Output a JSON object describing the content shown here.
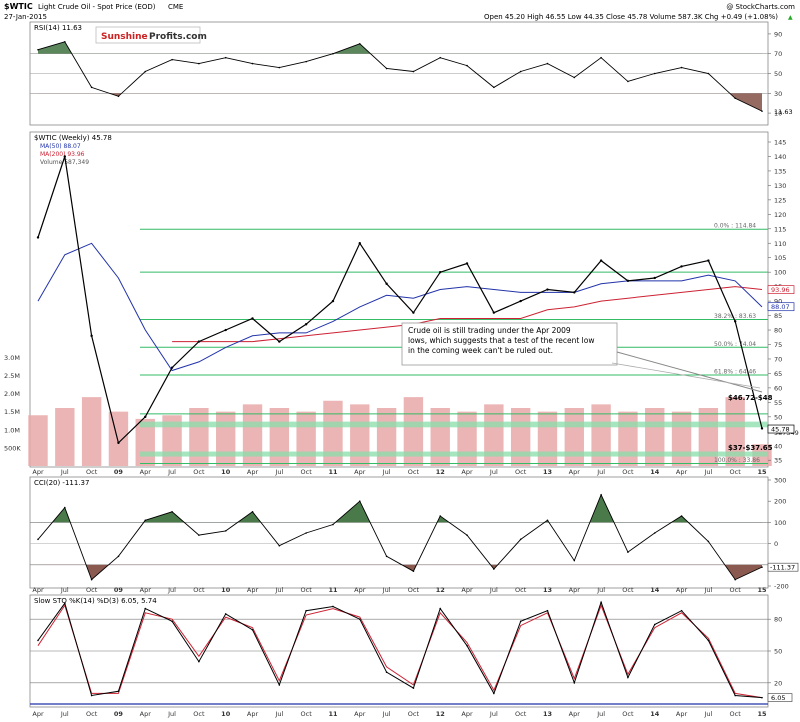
{
  "header": {
    "symbol": "$WTIC",
    "instrument": "Light Crude Oil - Spot Price (EOD)",
    "exchange": "CME",
    "date": "27-Jan-2015",
    "copyright": "@ StockCharts.com",
    "ohlc": "Open 45.20  High 46.55  Low 44.35  Close 45.78  Volume 587.3K  Chg +0.49 (+1.08%)",
    "chg_arrow": "▲"
  },
  "brand": {
    "part1": "Sunshine",
    "part2": "Profits.com",
    "color1": "#cc2222",
    "color2": "#333333"
  },
  "colors": {
    "price": "#000000",
    "ma50": "#2233aa",
    "ma200": "#cc2233",
    "fib": "#33bb66",
    "support_zone": "#88ddaa",
    "volume": "#e8a8a8",
    "oversold_fill": "#8a5a50",
    "overbought_fill": "#4a7a4a"
  },
  "chart_data": [
    {
      "type": "line",
      "panel": "RSI(14)",
      "title": "RSI(14) 11.63",
      "last_value": 11.63,
      "ylim": [
        0,
        100
      ],
      "y_ticks": [
        90,
        70,
        50,
        30,
        10
      ],
      "levels": [
        30,
        50,
        70
      ],
      "x": [
        "2008-04",
        "2008-07",
        "2008-10",
        "2009-01",
        "2009-04",
        "2009-07",
        "2009-10",
        "2010-01",
        "2010-04",
        "2010-07",
        "2010-10",
        "2011-01",
        "2011-04",
        "2011-07",
        "2011-10",
        "2012-01",
        "2012-04",
        "2012-07",
        "2012-10",
        "2013-01",
        "2013-04",
        "2013-07",
        "2013-10",
        "2014-01",
        "2014-04",
        "2014-07",
        "2014-10",
        "2015-01"
      ],
      "values": [
        74,
        82,
        36,
        27,
        52,
        64,
        60,
        66,
        60,
        56,
        62,
        70,
        80,
        55,
        52,
        66,
        58,
        36,
        52,
        60,
        46,
        66,
        42,
        50,
        56,
        50,
        25,
        12
      ]
    },
    {
      "type": "line",
      "panel": "price",
      "title": "$WTIC (Weekly) 45.78",
      "legend": [
        {
          "name": "$WTIC (Weekly) 45.78",
          "color": "#000000"
        },
        {
          "name": "MA(50) 88.07",
          "color": "#2233aa"
        },
        {
          "name": "MA(200) 93.96",
          "color": "#cc2233"
        },
        {
          "name": "Volume 587,349",
          "color": "#e8a8a8"
        }
      ],
      "ylim": [
        33,
        145
      ],
      "y_ticks": [
        145,
        140,
        135,
        130,
        125,
        120,
        115,
        110,
        105,
        100,
        95,
        90,
        85,
        80,
        75,
        70,
        65,
        60,
        55,
        50,
        45,
        40,
        35
      ],
      "x_ticks": [
        "Apr",
        "Jul",
        "Oct",
        "09",
        "Apr",
        "Jul",
        "Oct",
        "10",
        "Apr",
        "Jul",
        "Oct",
        "11",
        "Apr",
        "Jul",
        "Oct",
        "12",
        "Apr",
        "Jul",
        "Oct",
        "13",
        "Apr",
        "Jul",
        "Oct",
        "14",
        "Apr",
        "Jul",
        "Oct",
        "15"
      ],
      "x": [
        "2008-04",
        "2008-07",
        "2008-10",
        "2009-01",
        "2009-04",
        "2009-07",
        "2009-10",
        "2010-01",
        "2010-04",
        "2010-07",
        "2010-10",
        "2011-01",
        "2011-04",
        "2011-07",
        "2011-10",
        "2012-01",
        "2012-04",
        "2012-07",
        "2012-10",
        "2013-01",
        "2013-04",
        "2013-07",
        "2013-10",
        "2014-01",
        "2014-04",
        "2014-07",
        "2014-10",
        "2015-01"
      ],
      "series": [
        {
          "name": "$WTIC (Weekly)",
          "values": [
            112,
            140,
            78,
            41,
            50,
            67,
            76,
            80,
            84,
            76,
            82,
            90,
            110,
            96,
            86,
            100,
            103,
            86,
            90,
            94,
            93,
            104,
            97,
            98,
            102,
            104,
            83,
            46
          ]
        },
        {
          "name": "MA(50)",
          "values": [
            90,
            106,
            110,
            98,
            80,
            66,
            69,
            74,
            78,
            79,
            79,
            83,
            88,
            92,
            91,
            94,
            95,
            94,
            93,
            93,
            93,
            96,
            97,
            97,
            97,
            99,
            97,
            88
          ]
        },
        {
          "name": "MA(200)",
          "values": [
            null,
            null,
            null,
            null,
            null,
            76,
            76,
            76,
            76,
            77,
            78,
            79,
            80,
            81,
            82,
            84,
            84,
            84,
            84,
            87,
            88,
            90,
            91,
            92,
            93,
            94,
            95,
            94
          ]
        }
      ],
      "volume_ticks": [
        "3.0M",
        "2.5M",
        "2.0M",
        "1.5M",
        "1.0M",
        "500K"
      ],
      "volume_axis_label": "587349",
      "volume": [
        1.4,
        1.6,
        1.9,
        1.5,
        1.3,
        1.4,
        1.6,
        1.5,
        1.7,
        1.6,
        1.5,
        1.8,
        1.7,
        1.6,
        1.9,
        1.6,
        1.5,
        1.7,
        1.6,
        1.5,
        1.6,
        1.7,
        1.5,
        1.6,
        1.5,
        1.6,
        1.9,
        0.6
      ],
      "fib_levels": [
        {
          "label": "0.0% : 114.84",
          "value": 114.84
        },
        {
          "label": "38.2% : 83.63",
          "value": 83.63
        },
        {
          "label": "50.0% : 74.04",
          "value": 74.04
        },
        {
          "label": "61.8% : 64.46",
          "value": 64.46
        },
        {
          "label": "100.0% : 33.86",
          "value": 33.86
        }
      ],
      "extra_lines": [
        100,
        51
      ],
      "right_labels": [
        {
          "text": "93.96",
          "value": 93.96,
          "color": "#cc2233"
        },
        {
          "text": "88.07",
          "value": 88.07,
          "color": "#2233aa"
        },
        {
          "text": "45.78",
          "value": 45.78,
          "color": "#000000"
        }
      ],
      "support_zones": [
        {
          "label": "$46.72-$48",
          "low": 46.72,
          "high": 48
        },
        {
          "label": "$37-$37.65",
          "low": 37,
          "high": 37.65
        }
      ],
      "annotation": "Crude oil is still trading under the Apr 2009 lows, which suggests that a test of the recent low in the coming week can't be ruled out."
    },
    {
      "type": "line",
      "panel": "CCI(20)",
      "title": "CCI(20) -111.37",
      "last_value": -111.37,
      "ylim": [
        -200,
        300
      ],
      "y_ticks": [
        300,
        200,
        100,
        0,
        -100,
        -200
      ],
      "levels": [
        100,
        0,
        -100
      ],
      "x": [
        "2008-04",
        "2008-07",
        "2008-10",
        "2009-01",
        "2009-04",
        "2009-07",
        "2009-10",
        "2010-01",
        "2010-04",
        "2010-07",
        "2010-10",
        "2011-01",
        "2011-04",
        "2011-07",
        "2011-10",
        "2012-01",
        "2012-04",
        "2012-07",
        "2012-10",
        "2013-01",
        "2013-04",
        "2013-07",
        "2013-10",
        "2014-01",
        "2014-04",
        "2014-07",
        "2014-10",
        "2015-01"
      ],
      "values": [
        20,
        170,
        -170,
        -60,
        110,
        150,
        40,
        60,
        150,
        -10,
        50,
        90,
        200,
        -60,
        -130,
        130,
        40,
        -120,
        20,
        110,
        -80,
        230,
        -40,
        50,
        130,
        10,
        -170,
        -111
      ]
    },
    {
      "type": "line",
      "panel": "Slow STO",
      "title": "Slow STO %K(14) %D(3) 6.05, 5.74",
      "ylim": [
        0,
        100
      ],
      "y_ticks": [
        80,
        50,
        20
      ],
      "levels": [
        80,
        50,
        20
      ],
      "x": [
        "2008-04",
        "2008-07",
        "2008-10",
        "2009-01",
        "2009-04",
        "2009-07",
        "2009-10",
        "2010-01",
        "2010-04",
        "2010-07",
        "2010-10",
        "2011-01",
        "2011-04",
        "2011-07",
        "2011-10",
        "2012-01",
        "2012-04",
        "2012-07",
        "2012-10",
        "2013-01",
        "2013-04",
        "2013-07",
        "2013-10",
        "2014-01",
        "2014-04",
        "2014-07",
        "2014-10",
        "2015-01"
      ],
      "series": [
        {
          "name": "%K",
          "color": "#000000",
          "last": 6.05,
          "values": [
            60,
            95,
            8,
            12,
            90,
            78,
            40,
            85,
            70,
            18,
            88,
            92,
            80,
            30,
            15,
            90,
            55,
            10,
            78,
            88,
            20,
            96,
            25,
            75,
            88,
            60,
            8,
            6
          ]
        },
        {
          "name": "%D",
          "color": "#cc2233",
          "last": 5.74,
          "values": [
            55,
            93,
            10,
            10,
            86,
            80,
            45,
            82,
            72,
            22,
            84,
            90,
            82,
            35,
            18,
            86,
            58,
            13,
            74,
            86,
            24,
            93,
            28,
            72,
            86,
            62,
            10,
            6
          ]
        }
      ],
      "right_label": "6.05"
    }
  ]
}
